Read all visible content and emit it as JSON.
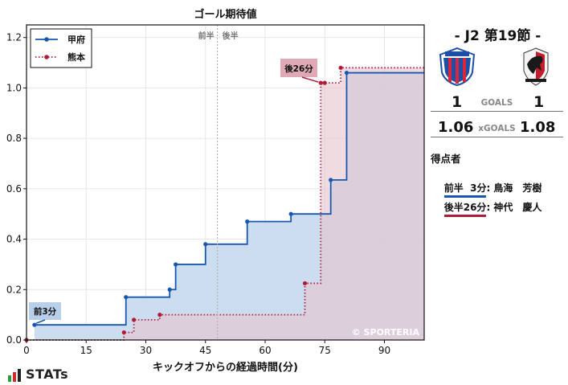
{
  "chart_data": {
    "type": "line",
    "title": "ゴール期待値",
    "xlabel": "キックオフからの経過時間(分)",
    "ylabel": "",
    "xlim": [
      0,
      100
    ],
    "ylim": [
      0,
      1.25
    ],
    "xticks": [
      0,
      15,
      30,
      45,
      60,
      75,
      90
    ],
    "yticks": [
      0.0,
      0.2,
      0.4,
      0.6,
      0.8,
      1.0,
      1.2
    ],
    "half_divider_x": 48,
    "half_labels": [
      "前半",
      "後半"
    ],
    "watermark": "© SPORTERIA",
    "legend_position": "top-left",
    "series": [
      {
        "name": "甲府",
        "color": "#1757b2",
        "fill": "#c9dbef",
        "style": "solid",
        "points": [
          [
            2,
            0.06
          ],
          [
            25,
            0.17
          ],
          [
            36,
            0.2
          ],
          [
            37.5,
            0.3
          ],
          [
            45,
            0.38
          ],
          [
            55.5,
            0.47
          ],
          [
            66.5,
            0.5
          ],
          [
            76.5,
            0.635
          ],
          [
            80.5,
            1.06
          ],
          [
            100,
            1.06
          ]
        ]
      },
      {
        "name": "熊本",
        "color": "#b01c38",
        "fill": "#e6c5cc",
        "style": "dotted",
        "points": [
          [
            0,
            0.0
          ],
          [
            24.5,
            0.03
          ],
          [
            27,
            0.08
          ],
          [
            33.5,
            0.1
          ],
          [
            70,
            0.225
          ],
          [
            74,
            1.02
          ],
          [
            75,
            1.02
          ],
          [
            79,
            1.08
          ],
          [
            100,
            1.08
          ]
        ]
      }
    ],
    "annotations": [
      {
        "text": "前3分",
        "x": 2,
        "y": 0.06,
        "color": "#b7cfe9"
      },
      {
        "text": "後26分",
        "x": 74,
        "y": 1.02,
        "color": "#dfaab5"
      }
    ]
  },
  "match": {
    "title": "- J2 第19節 -",
    "home_goals": "1",
    "away_goals": "1",
    "goals_label": "GOALS",
    "home_xg": "1.06",
    "away_xg": "1.08",
    "xg_label": "xGOALS",
    "scorers_header": "得点者",
    "scorers": [
      {
        "half": "前半",
        "minute": "  3分",
        "name": ": 鳥海　芳樹",
        "color": "#1757b2"
      },
      {
        "half": "後半",
        "minute": "26分",
        "name": ": 神代　慶人",
        "color": "#b01c38"
      }
    ]
  },
  "branding": {
    "stats_text": "STATs"
  }
}
